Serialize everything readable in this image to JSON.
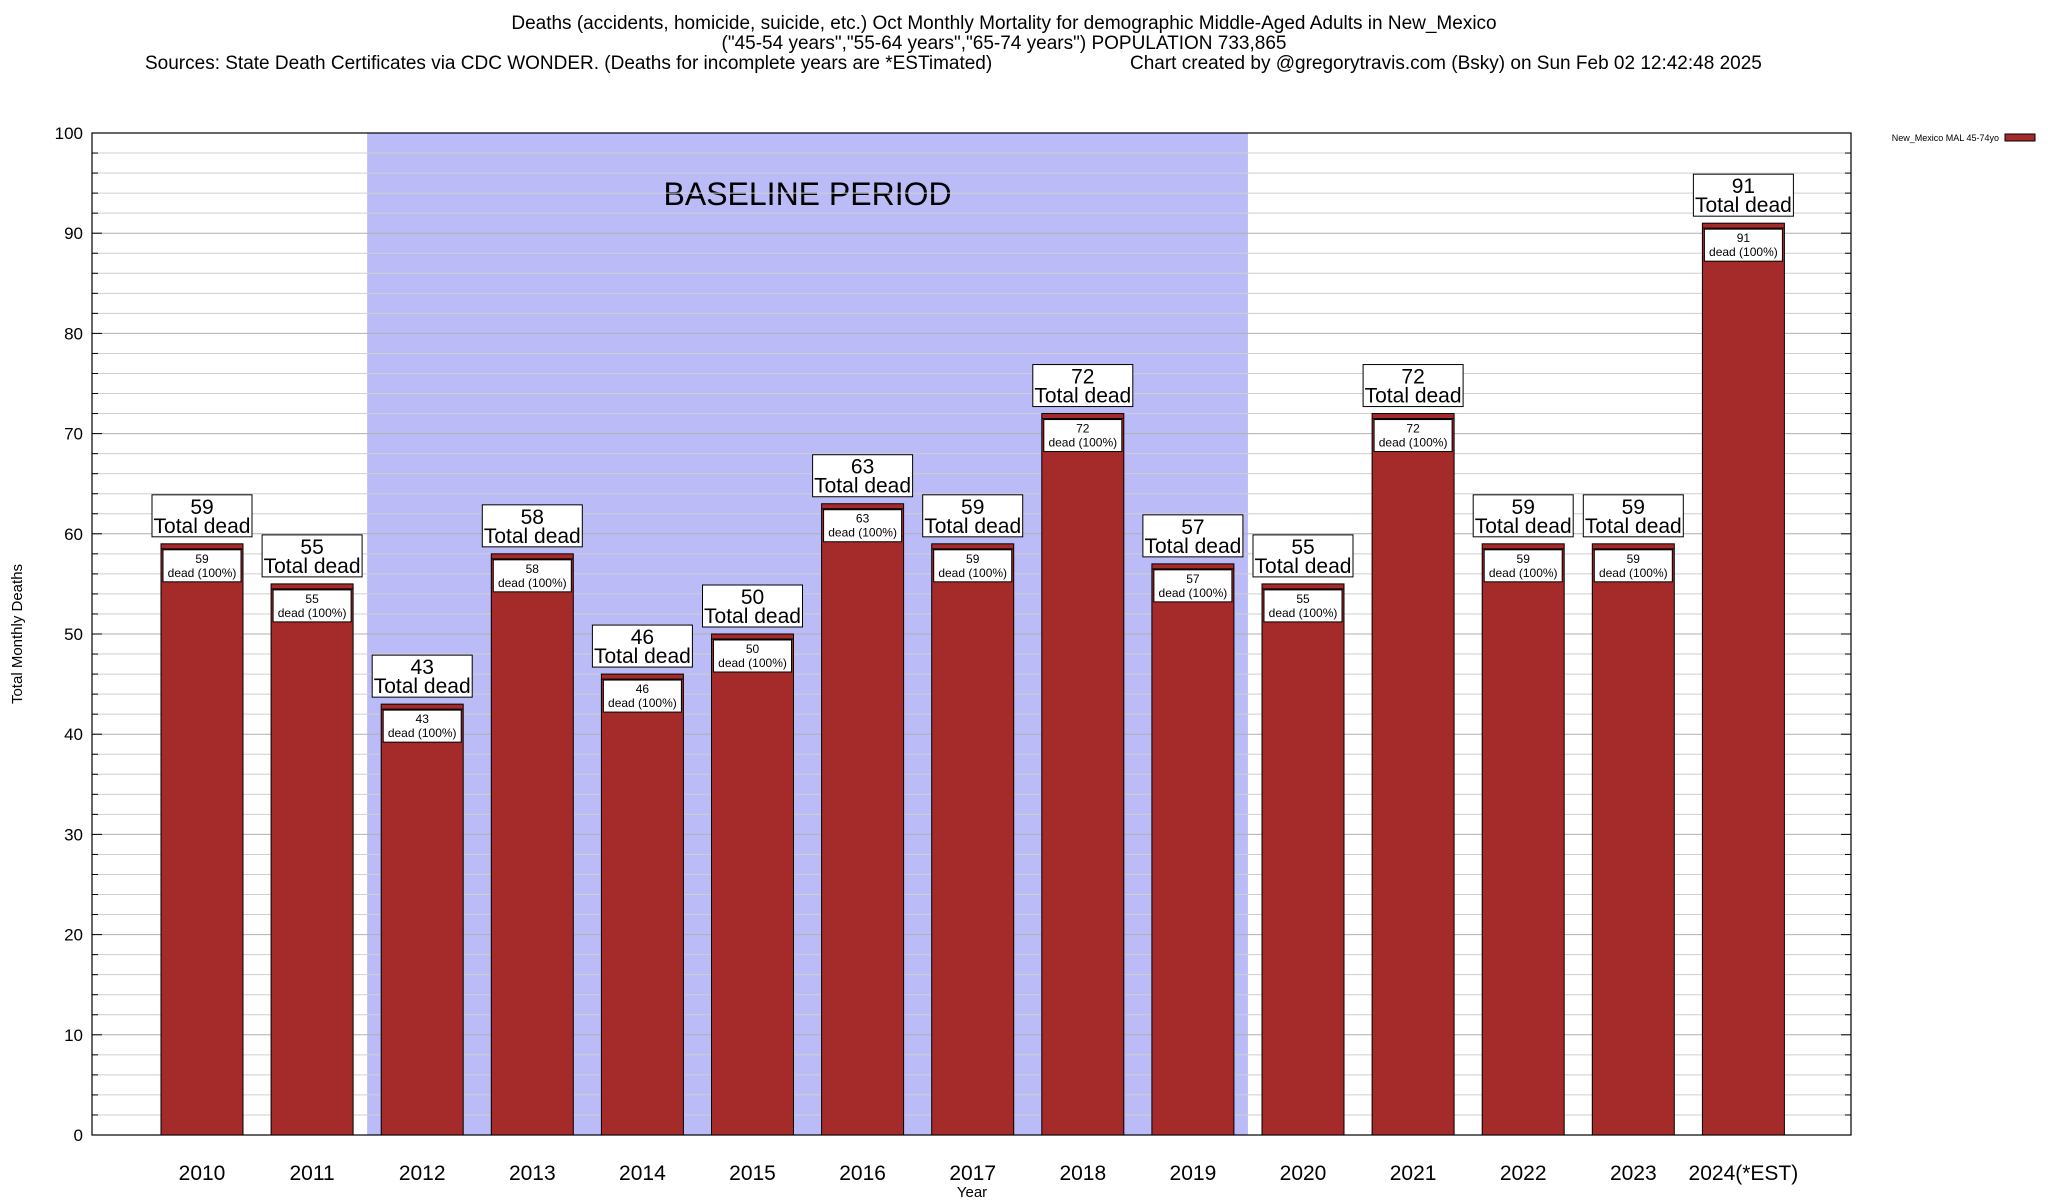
{
  "chart_data": {
    "type": "bar",
    "title": "Deaths (accidents, homicide, suicide, etc.) Oct Monthly Mortality for demographic Middle-Aged Adults in New_Mexico",
    "subtitle": "(\"45-54 years\",\"55-64 years\",\"65-74 years\") POPULATION 733,865",
    "sources": "Sources: State Death Certificates via CDC WONDER. (Deaths for incomplete years are *ESTimated)",
    "credit": "Chart created by @gregorytravis.com (Bsky) on Sun Feb 02 12:42:48 2025",
    "xlabel": "Year",
    "ylabel": "Total Monthly Deaths",
    "ylim": [
      0,
      100
    ],
    "yticks": [
      0,
      10,
      20,
      30,
      40,
      50,
      60,
      70,
      80,
      90,
      100
    ],
    "grid": true,
    "legend_position": "top-right",
    "categories": [
      "2010",
      "2011",
      "2012",
      "2013",
      "2014",
      "2015",
      "2016",
      "2017",
      "2018",
      "2019",
      "2020",
      "2021",
      "2022",
      "2023",
      "2024(*EST)"
    ],
    "series": [
      {
        "name": "New_Mexico MAL 45-74yo",
        "color": "#a52a2a",
        "values": [
          59,
          55,
          43,
          58,
          46,
          50,
          63,
          59,
          72,
          57,
          55,
          72,
          59,
          59,
          91
        ]
      }
    ],
    "top_label_suffix": "Total dead",
    "inner_label_suffix": "dead (100%)",
    "baseline": {
      "label": "BASELINE PERIOD",
      "from": "2012",
      "to": "2019",
      "color": "#bbbbf8"
    }
  }
}
